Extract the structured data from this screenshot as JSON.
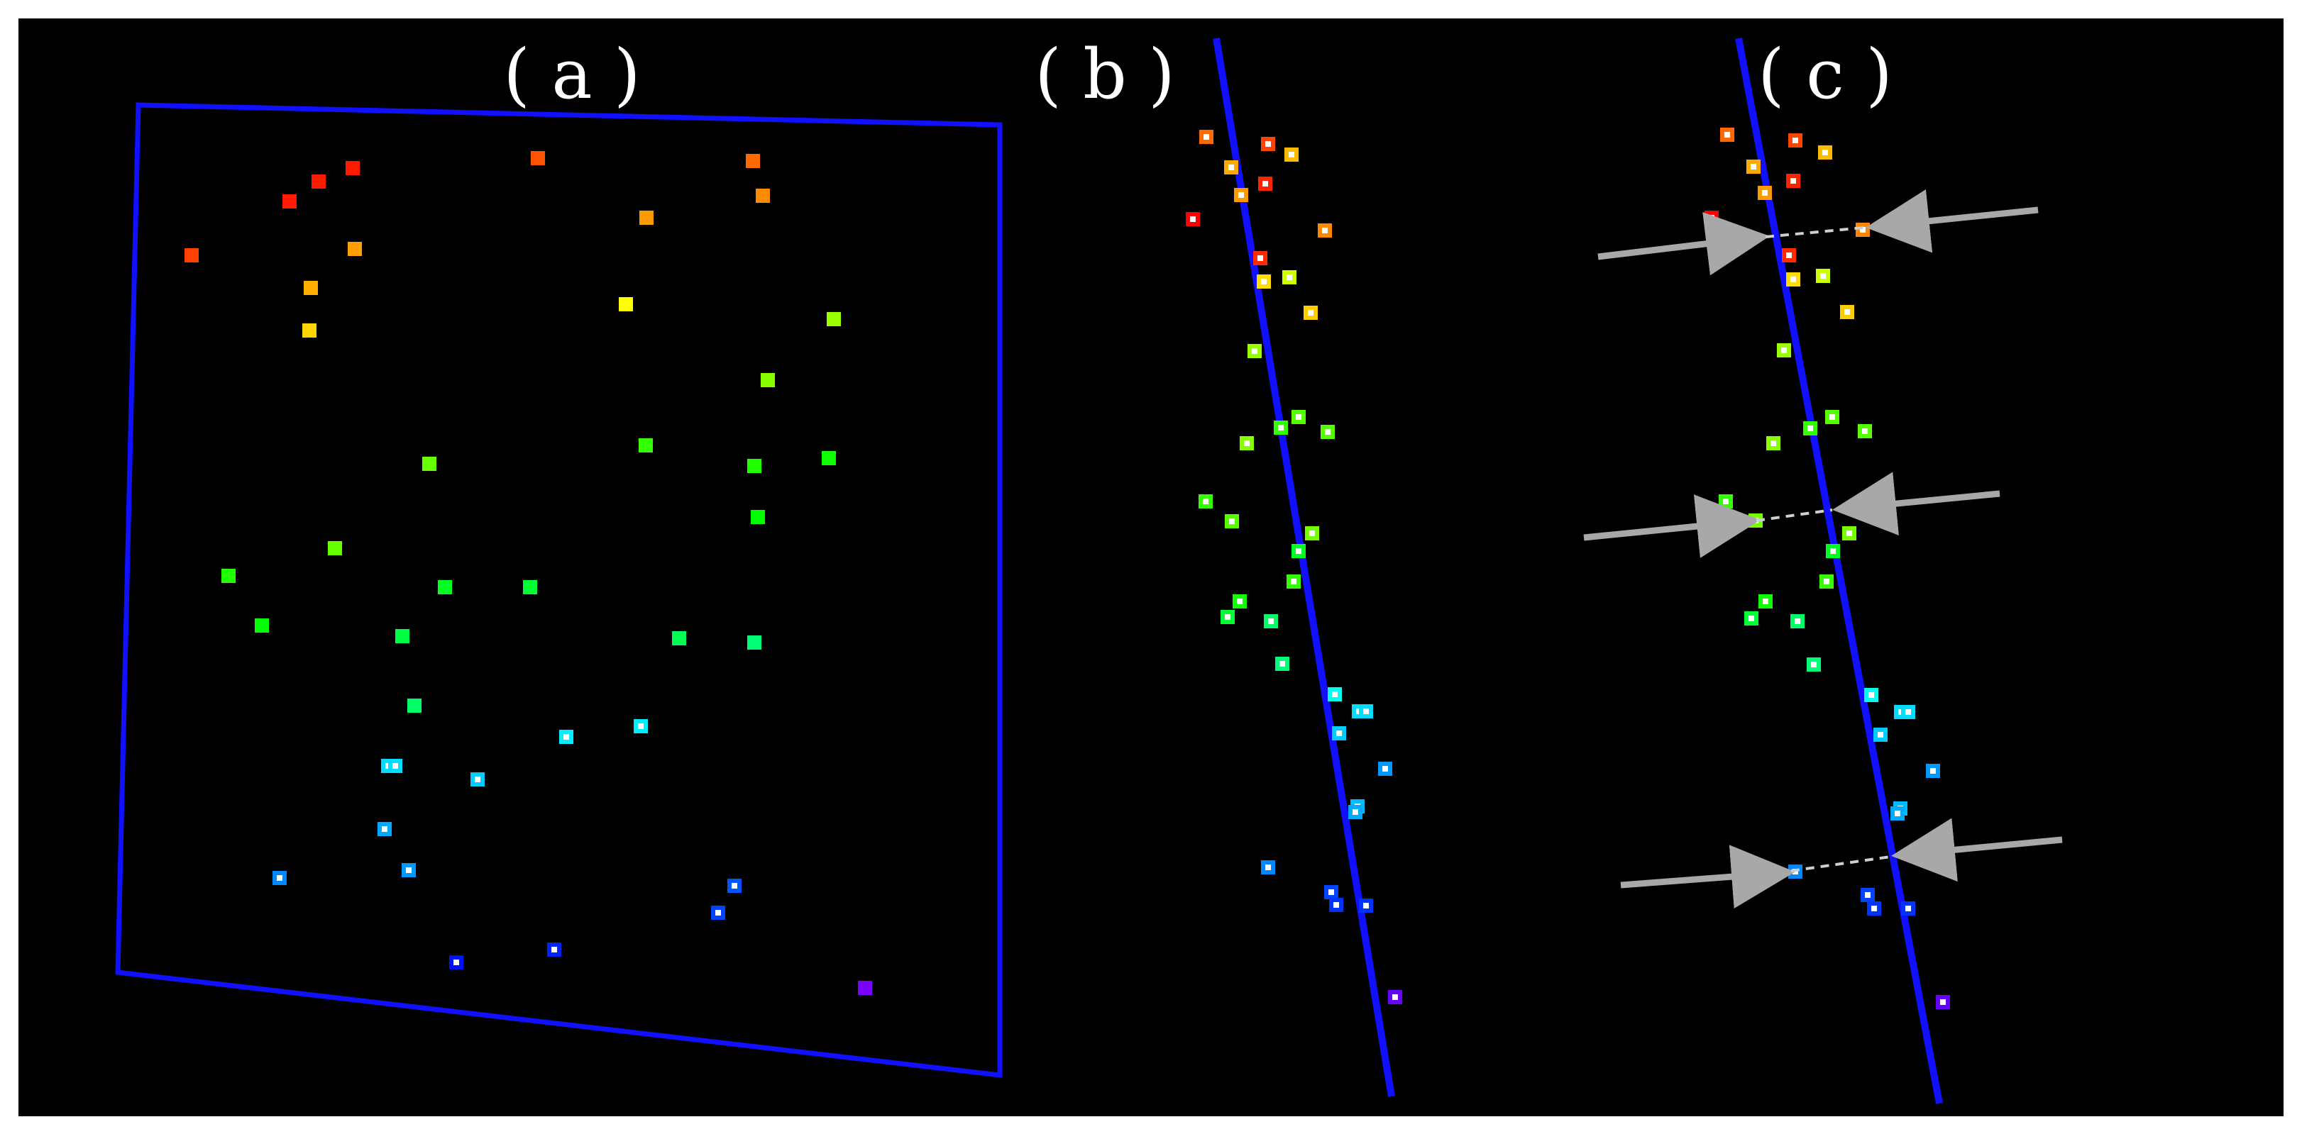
{
  "panels": {
    "a": {
      "label": "( a )"
    },
    "b": {
      "label": "( b )"
    },
    "c": {
      "label": "( c )"
    }
  },
  "colors": {
    "background": "#000000",
    "frame": "#ffffff",
    "plane_line": "#1010ff",
    "arrow": "#a8a8a8",
    "dashed_link": "#cfcfcf",
    "marker_core": "#ffffff"
  },
  "icons": {
    "point_marker": "square-marker-icon",
    "arrow": "arrow-icon"
  }
}
